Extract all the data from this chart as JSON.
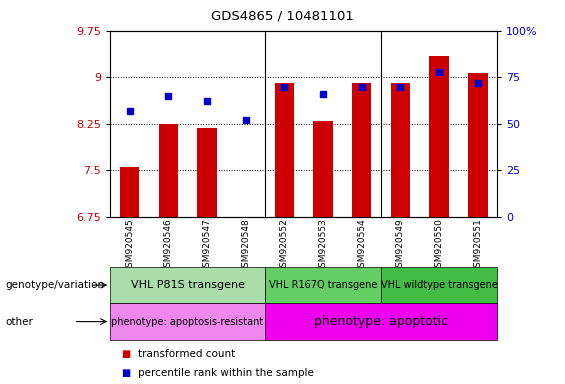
{
  "title": "GDS4865 / 10481101",
  "samples": [
    "GSM920545",
    "GSM920546",
    "GSM920547",
    "GSM920548",
    "GSM920552",
    "GSM920553",
    "GSM920554",
    "GSM920549",
    "GSM920550",
    "GSM920551"
  ],
  "transformed_count": [
    7.55,
    8.25,
    8.18,
    6.7,
    8.9,
    8.3,
    8.9,
    8.9,
    9.35,
    9.07
  ],
  "percentile_rank": [
    57,
    65,
    62,
    52,
    70,
    66,
    70,
    70,
    78,
    72
  ],
  "ylim": [
    6.75,
    9.75
  ],
  "y2lim": [
    0,
    100
  ],
  "yticks": [
    6.75,
    7.5,
    8.25,
    9.0,
    9.75
  ],
  "ytick_labels": [
    "6.75",
    "7.5",
    "8.25",
    "9",
    "9.75"
  ],
  "y2ticks": [
    0,
    25,
    50,
    75,
    100
  ],
  "y2tick_labels": [
    "0",
    "25",
    "50",
    "75",
    "100%"
  ],
  "bar_color": "#cc0000",
  "dot_color": "#0000cc",
  "genotype_groups": [
    {
      "label": "VHL P81S transgene",
      "start": 0,
      "end": 4,
      "color": "#aaddaa",
      "fontsize": 8
    },
    {
      "label": "VHL R167Q transgene",
      "start": 4,
      "end": 7,
      "color": "#66cc66",
      "fontsize": 7
    },
    {
      "label": "VHL wildtype transgene",
      "start": 7,
      "end": 10,
      "color": "#44bb44",
      "fontsize": 7
    }
  ],
  "other_groups": [
    {
      "label": "phenotype: apoptosis-resistant",
      "start": 0,
      "end": 4,
      "color": "#ee88ee",
      "fontsize": 7
    },
    {
      "label": "phenotype: apoptotic",
      "start": 4,
      "end": 10,
      "color": "#ee00ee",
      "fontsize": 9
    }
  ],
  "legend_items": [
    {
      "label": "transformed count",
      "color": "#cc0000"
    },
    {
      "label": "percentile rank within the sample",
      "color": "#0000cc"
    }
  ],
  "row_labels": [
    "genotype/variation",
    "other"
  ],
  "vlines": [
    3.5,
    6.5
  ]
}
